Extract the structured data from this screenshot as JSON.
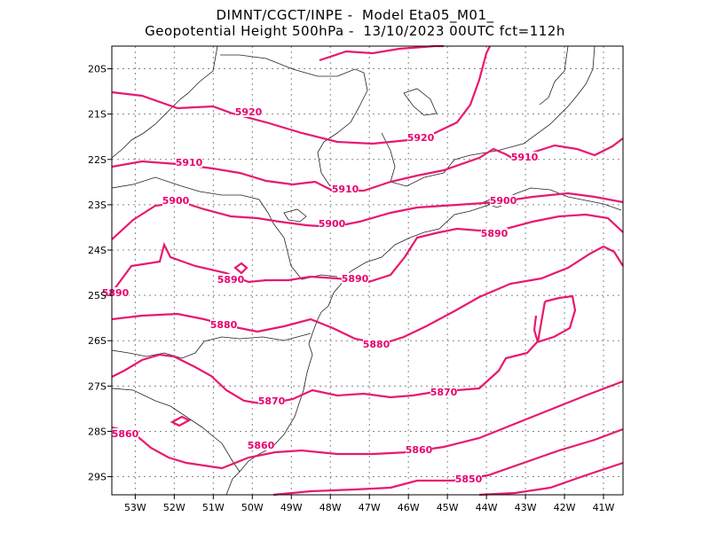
{
  "header": {
    "line1": "DIMNT/CGCT/INPE -  Model Eta05_M01_",
    "line2": "Geopotential Height 500hPa -  13/10/2023 00UTC fct=112h"
  },
  "map": {
    "variable": "Geopotential Height 500hPa",
    "lon_range": [
      -53.6,
      -40.5
    ],
    "lat_range": [
      -29.4,
      -19.5
    ],
    "grid": true,
    "contour_color": "#e8186f",
    "lon_ticks": [
      "53W",
      "52W",
      "51W",
      "50W",
      "49W",
      "48W",
      "47W",
      "46W",
      "45W",
      "44W",
      "43W",
      "42W",
      "41W"
    ],
    "lat_ticks": [
      "20S",
      "21S",
      "22S",
      "23S",
      "24S",
      "25S",
      "26S",
      "27S",
      "28S",
      "29S"
    ],
    "contour_labels": [
      "5920",
      "5920",
      "5910",
      "5910",
      "5910",
      "5900",
      "5900",
      "5900",
      "5890",
      "5890",
      "5890",
      "5890",
      "5880",
      "5880",
      "5870",
      "5870",
      "5860",
      "5860",
      "5860",
      "5850"
    ]
  }
}
